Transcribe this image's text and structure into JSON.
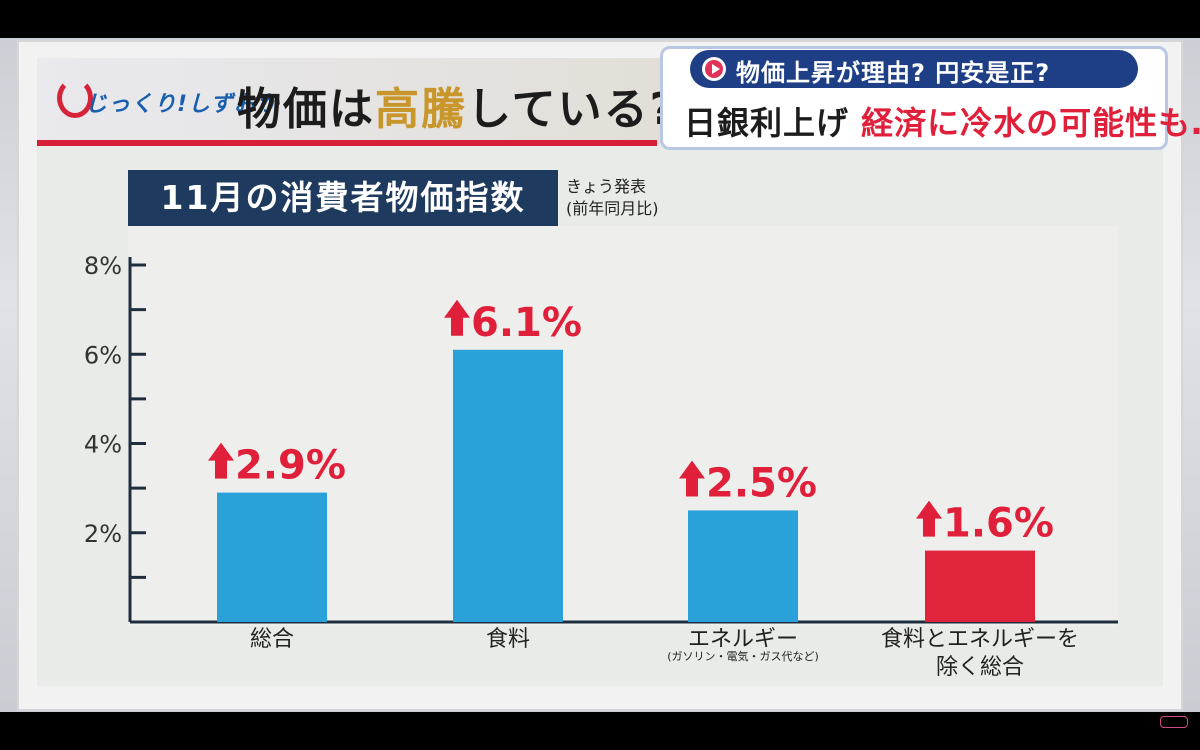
{
  "header": {
    "logo_text": "じっくり!しずおか",
    "title_part1": "物価は",
    "title_part2": "高騰",
    "title_part3": "している?"
  },
  "news": {
    "sub_headline": "物価上昇が理由? 円安是正?",
    "headline_part1": "日銀利上げ ",
    "headline_part2": "経済に冷水の可能性も…"
  },
  "chart_title": "11月の消費者物価指数",
  "note": {
    "line1": "きょう発表",
    "line2": "(前年同月比)"
  },
  "colors": {
    "bar_blue": "#2aa1d9",
    "bar_red": "#e0243c",
    "label_red": "#e0203a",
    "title_box": "#1f3a5f"
  },
  "chart_data": {
    "type": "bar",
    "categories": [
      "総合",
      "食料",
      "エネルギー",
      "食料とエネルギーを除く総合"
    ],
    "category_lines": [
      [
        "総合"
      ],
      [
        "食料"
      ],
      [
        "エネルギー"
      ],
      [
        "食料とエネルギーを",
        "除く総合"
      ]
    ],
    "category_notes": [
      "",
      "",
      "(ガソリン・電気・ガス代など)",
      ""
    ],
    "values": [
      2.9,
      6.1,
      2.5,
      1.6
    ],
    "value_labels": [
      "2.9%",
      "6.1%",
      "2.5%",
      "1.6%"
    ],
    "bar_colors": [
      "#2aa1d9",
      "#2aa1d9",
      "#2aa1d9",
      "#e0243c"
    ],
    "ylim": [
      0,
      8
    ],
    "yticks": [
      0,
      1,
      2,
      3,
      4,
      5,
      6,
      7,
      8
    ],
    "ytick_labels": [
      "",
      "",
      "2%",
      "",
      "4%",
      "",
      "6%",
      "",
      "8%"
    ],
    "grid": false,
    "title": "11月の消費者物価指数"
  }
}
